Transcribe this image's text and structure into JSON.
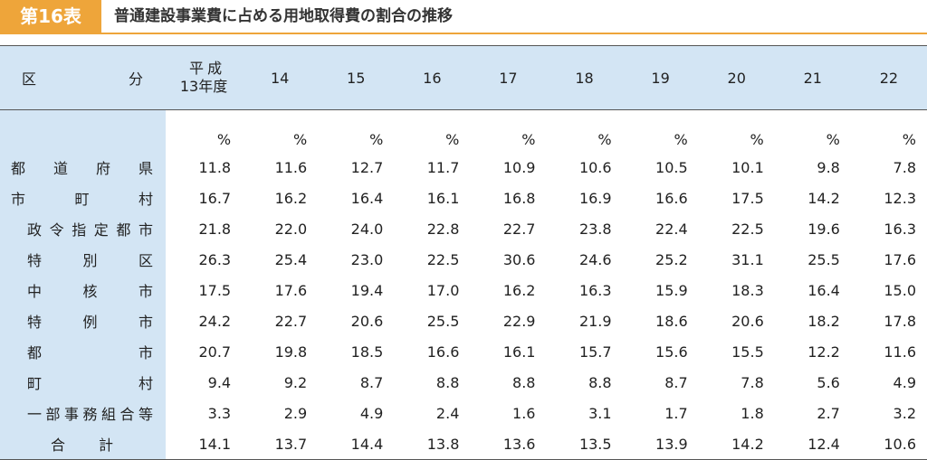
{
  "header": {
    "badge": "第16表",
    "title": "普通建設事業費に占める用地取得費の割合の推移"
  },
  "table": {
    "corner": [
      "区",
      "分"
    ],
    "first_year": [
      "平成",
      "13年度"
    ],
    "columns": [
      "14",
      "15",
      "16",
      "17",
      "18",
      "19",
      "20",
      "21",
      "22"
    ],
    "unit": "%",
    "rows": [
      {
        "label": "都道府県",
        "values": [
          "11.8",
          "11.6",
          "12.7",
          "11.7",
          "10.9",
          "10.6",
          "10.5",
          "10.1",
          "9.8",
          "7.8"
        ]
      },
      {
        "label": "市町村",
        "values": [
          "16.7",
          "16.2",
          "16.4",
          "16.1",
          "16.8",
          "16.9",
          "16.6",
          "17.5",
          "14.2",
          "12.3"
        ]
      },
      {
        "label": "政令指定都市",
        "values": [
          "21.8",
          "22.0",
          "24.0",
          "22.8",
          "22.7",
          "23.8",
          "22.4",
          "22.5",
          "19.6",
          "16.3"
        ]
      },
      {
        "label": "特別区",
        "values": [
          "26.3",
          "25.4",
          "23.0",
          "22.5",
          "30.6",
          "24.6",
          "25.2",
          "31.1",
          "25.5",
          "17.6"
        ]
      },
      {
        "label": "中核市",
        "values": [
          "17.5",
          "17.6",
          "19.4",
          "17.0",
          "16.2",
          "16.3",
          "15.9",
          "18.3",
          "16.4",
          "15.0"
        ]
      },
      {
        "label": "特例市",
        "values": [
          "24.2",
          "22.7",
          "20.6",
          "25.5",
          "22.9",
          "21.9",
          "18.6",
          "20.6",
          "18.2",
          "17.8"
        ]
      },
      {
        "label": "都市",
        "values": [
          "20.7",
          "19.8",
          "18.5",
          "16.6",
          "16.1",
          "15.7",
          "15.6",
          "15.5",
          "12.2",
          "11.6"
        ]
      },
      {
        "label": "町村",
        "values": [
          "9.4",
          "9.2",
          "8.7",
          "8.8",
          "8.8",
          "8.8",
          "8.7",
          "7.8",
          "5.6",
          "4.9"
        ]
      },
      {
        "label": "一部事務組合等",
        "values": [
          "3.3",
          "2.9",
          "4.9",
          "2.4",
          "1.6",
          "3.1",
          "1.7",
          "1.8",
          "2.7",
          "3.2"
        ]
      },
      {
        "label": "合計",
        "values": [
          "14.1",
          "13.7",
          "14.4",
          "13.8",
          "13.6",
          "13.5",
          "13.9",
          "14.2",
          "12.4",
          "10.6"
        ]
      }
    ]
  }
}
